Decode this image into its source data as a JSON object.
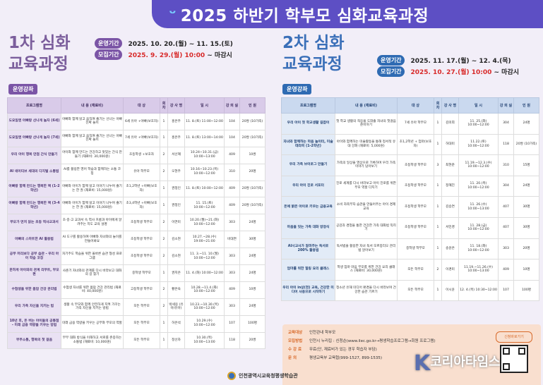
{
  "banner": {
    "title": "2025 하반기 학부모 심화교육과정"
  },
  "panels": [
    {
      "title_line1": "1차 심화",
      "title_line2": "교육과정",
      "period_label": "운영기간",
      "period_value": "2025. 10. 20.(월) ~ 11. 15.(토)",
      "recruit_label": "모집기간",
      "recruit_date": "2025. 9. 29.(월) 10:00",
      "recruit_end": " ~ 마감시",
      "section": "운영강좌",
      "headers": [
        "프로그램명",
        "내 용 (재료비)",
        "대 상",
        "회 차",
        "강 사 명",
        "일 시",
        "강 의 실",
        "인 원"
      ],
      "rows": [
        [
          "도요일엔 아빠랑 산나게 놀자 (6세)",
          "아빠와 함께 읽고 움직여 즐기는 신나는 아빠 진짜 놀이",
          "6세 유아 +아빠(보호자)",
          "1",
          "홍은주",
          "11. 8.(토) 11:00~12:00",
          "104",
          "20쌍 (10가족)"
        ],
        [
          "도요일엔 아빠랑 산나게 놀자 (7세)",
          "아빠와 함께 읽고 움직여 즐기는 신나는 아빠 진짜 놀이",
          "7세 유아 +아빠(보호자)",
          "1",
          "홍은주",
          "11. 8.(토) 13:00~14:00",
          "104",
          "20쌍 (10가족)"
        ],
        [
          "우리 아이 행복 만점 간식 만들기",
          "아이와 함께 만드는 건강하고 맛있는 간식 만들기 (재료비: 30,000원)",
          "초등학생 +보호자",
          "2",
          "서선혜",
          "10.24~10.31.(금) 10:00~13:00",
          "409",
          "10쌍"
        ],
        [
          "AI 네이티브 세대의 디지털 소통법",
          "AI를 활용한 영어 학습과 함께하는 소통 코칭",
          "유아 학부모",
          "2",
          "오현주",
          "10.16~10.23.(목) 10:00~12:00",
          "310",
          "20명"
        ],
        [
          "아빠랑 함께 만드는 행복한 책 (1-2학년)",
          "아빠와 아이가 함께 읽고 이야기 나누며 즐기는 한 권 (재료비: 15,000원)",
          "초1,2학년 +아빠(보호자)",
          "1",
          "권정인",
          "11. 8.(토) 10:00~12:00",
          "409",
          "20쌍 (10가족)"
        ],
        [
          "아빠랑 함께 만드는 행복한 책 (3-4학년)",
          "아빠와 아이가 함께 읽고 이야기 나누며 즐기는 한 권 (재료비: 15,000원)",
          "초3,4학년 +아빠(보호자)",
          "1",
          "권정인",
          "11. 15.(토) 10:00~12:00",
          "409",
          "20쌍 (10가족)"
        ],
        [
          "부모가 먼저 읽는 초등 역사교과서",
          "초·중·고 교과서 속 역사 흐름과 아이에게 알려주는 지도 교육 설명",
          "초등학생 학부모",
          "2",
          "이연미",
          "10.20.(월)~21.(화) 10:00~12:00",
          "303",
          "24명"
        ],
        [
          "아빠의 스마트한 AI 활용법",
          "AI 도구를 활용하여 아빠와 자녀와의 놀이를 만들어봐요",
          "초등학생 학부모",
          "2",
          "김소현",
          "10.27.~28.(수) 19:00~21:00",
          "비대면",
          "30명"
        ],
        [
          "공부 머리보다 공부 습관 - 우리 아이 학습 코칭",
          "자기주도 학습을 위한 올바른 습관 형성 프로그램",
          "초등학생 학부모",
          "2",
          "김소현",
          "11. 3.~11. 10.(월) 10:00~12:00",
          "303",
          "24명"
        ],
        [
          "흔하게 아이와의 관계 리부트, 부모편",
          "사춘기 자녀와의 관계를 다시 바라보고 대화의 길 찾기",
          "중학생 학부모",
          "1",
          "권지은",
          "11. 4.(화) 10:00~12:00",
          "303",
          "24명"
        ],
        [
          "수험생을 위한 몸맘 건강 관리법",
          "수험생 자녀를 위한 몸맘 건강 관리법 (재료비: 40,000원)",
          "고등학생 학부모",
          "2",
          "황은숙",
          "10.28.~11.4.(화) 10:00~12:00",
          "409",
          "10쌍"
        ],
        [
          "우리 가족 자신을 지키는 법",
          "생활 속 부모와 함께 안전하게 지켜 가꾸는 가족 자신을 지키는 방법",
          "모든 학부모",
          "2",
          "박세웅 (유아/유아)",
          "10.23.~10.30.(목) 10:00~12:00",
          "303",
          "24명"
        ],
        [
          "10년 후, 돈 버는 아이들의 공통점 - 미래 금융 역량을 키우는 방법",
          "미래 금융 역량을 키우는 공부와 부모의 역할",
          "모든 학부모",
          "1",
          "허은석",
          "10.29.(수) 10:00~12:00",
          "107",
          "100명"
        ],
        [
          "부부소통, 행복의 첫 걸음",
          "부부 대화 방식을 이해하고 서로를 존중하는 소통법 (재료비: 10,000원)",
          "모든 학부모",
          "1",
          "정선자",
          "10.30.(목) 10:00~13:00",
          "118",
          "20쌍"
        ]
      ]
    },
    {
      "title_line1": "2차 심화",
      "title_line2": "교육과정",
      "period_label": "운영기간",
      "period_value": "2025. 11. 17.(월) ~ 12. 4.(목)",
      "recruit_label": "모집기간",
      "recruit_date": "2025. 10. 27.(월) 10:00",
      "recruit_end": " ~ 마감시",
      "section": "운영강좌",
      "headers": [
        "프로그램명",
        "내 용 (재료비)",
        "대 상",
        "회 차",
        "강 사 명",
        "일 시",
        "강 의 실",
        "인 원"
      ],
      "rows": [
        [
          "우리 아이 첫 학교생활 길잡이",
          "첫 학교 생활의 적응을 도와줄 자녀의 첫걸음 준비하기",
          "7세 유아 학부모",
          "1",
          "김미희",
          "11. 25.(화) 10:00~12:00",
          "304",
          "24명"
        ],
        [
          "자녀와 함께하는 마음 놀이터, 미술테라피 (1-2학년)",
          "아이와 함께하는 미술활동을 통해 정서적 유대 강화 (재료비: 5,000원)",
          "초1,2학년 + 엄마(보호자)",
          "1",
          "허대미",
          "11.22.(토) 10:00~12:00",
          "118",
          "20쌍 (10가족)"
        ],
        [
          "우리 가족 브이로그 만들기",
          "가족의 일상을 영상으로 기록하며 우리 가족 이야기 담아보기",
          "초등학생 학부모",
          "3",
          "최현준",
          "11.19.~12.3.(수) 10:00~12:00",
          "310",
          "15명"
        ],
        [
          "우리 아이 진로 서포터",
          "진로 세계를 다시 바라보고 아이 진로를 위한 부모 역할 다지기",
          "초등학생 학부모",
          "1",
          "정혜진",
          "11. 20.(목) 10:00~12:00",
          "304",
          "24명"
        ],
        [
          "돈에 밝은 아이로 키우는 금융교육",
          "소비 자족부자 습관을 만들어주는 아이 경제교육",
          "초등학생 학부모",
          "1",
          "김승연",
          "11. 26.(수) 10:00~13:00",
          "407",
          "30명"
        ],
        [
          "마음을 잇는 가족 대화 방정식",
          "공감과 경청을 통한 건강한 가족 대화법 익히기",
          "초등학생 학부모",
          "1",
          "서민경",
          "11. 28.(금) 10:00~12:00",
          "407",
          "30명"
        ],
        [
          "AI시교사가 알려주는 독서로 200% 활용법",
          "독서법을 활용한 자녀 독서 모르봉리오 관리법 알아보기",
          "중학생 학부모",
          "1",
          "송윤은",
          "11. 18.(화) 10:00~12:00",
          "303",
          "20명"
        ],
        [
          "엄마를 위한 힐링 요리 클래스",
          "학생 엄마 마음 부모를 위한 건강 요리 클래스 (재료비: 30,000원)",
          "모든 학부모",
          "2",
          "이경미",
          "11.19.~11.26.(수) 10:00~13:00",
          "409",
          "10명"
        ],
        [
          "우리 아이 in상(현) 교육, 건강한 미디어 사용으로 시작하기",
          "청소년 유해 미디어 환경을 다시 바라보며 건강한 습관 기르기",
          "모든 학부모",
          "1",
          "이시윤",
          "12. 4.(목) 10:30~12:00",
          "107",
          "100명"
        ]
      ]
    }
  ],
  "info": {
    "rows": [
      {
        "label": "교육대상",
        "value": "인천관내 학부모"
      },
      {
        "label": "모집방법",
        "value": "인천시 누리집 : 신청순(www.ilec.go.kr→평생학습프로그램→회원 프로그램)"
      },
      {
        "label": "수 강 료",
        "value": "무료(단, 재료비가 있는 경우 학습자 부담)"
      },
      {
        "label": "문 의",
        "value": "평생교육부 교육협(999-1527, 899-1535)"
      }
    ],
    "qr_caption": "신청바로가기"
  },
  "footer": {
    "org": "인천광역시교육청평생학습관"
  },
  "watermark": {
    "k": "K",
    "text": "코리아타임스"
  }
}
